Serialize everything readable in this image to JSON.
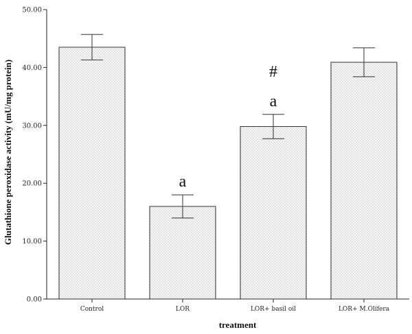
{
  "chart_data": {
    "type": "bar",
    "title": "",
    "xlabel": "treatment",
    "ylabel": "Glutathione peroxidase activity (mU/mg protein)",
    "categories": [
      "Control",
      "LOR",
      "LOR+ basil oil",
      "LOR+ M.Olifera"
    ],
    "values": [
      43.5,
      16.0,
      29.8,
      40.9
    ],
    "error": [
      2.2,
      2.0,
      2.1,
      2.5
    ],
    "annotations": [
      "",
      "a",
      "a",
      ""
    ],
    "annotations_top": [
      "",
      "",
      "#",
      ""
    ],
    "ylim": [
      0,
      50
    ],
    "yticks": [
      "0.00",
      "10.00",
      "20.00",
      "30.00",
      "40.00",
      "50.00"
    ],
    "grid": false
  },
  "colors": {
    "bar_fill": "#f4f4f4",
    "bar_dots": "#9a9a9a",
    "axis": "#222222"
  }
}
